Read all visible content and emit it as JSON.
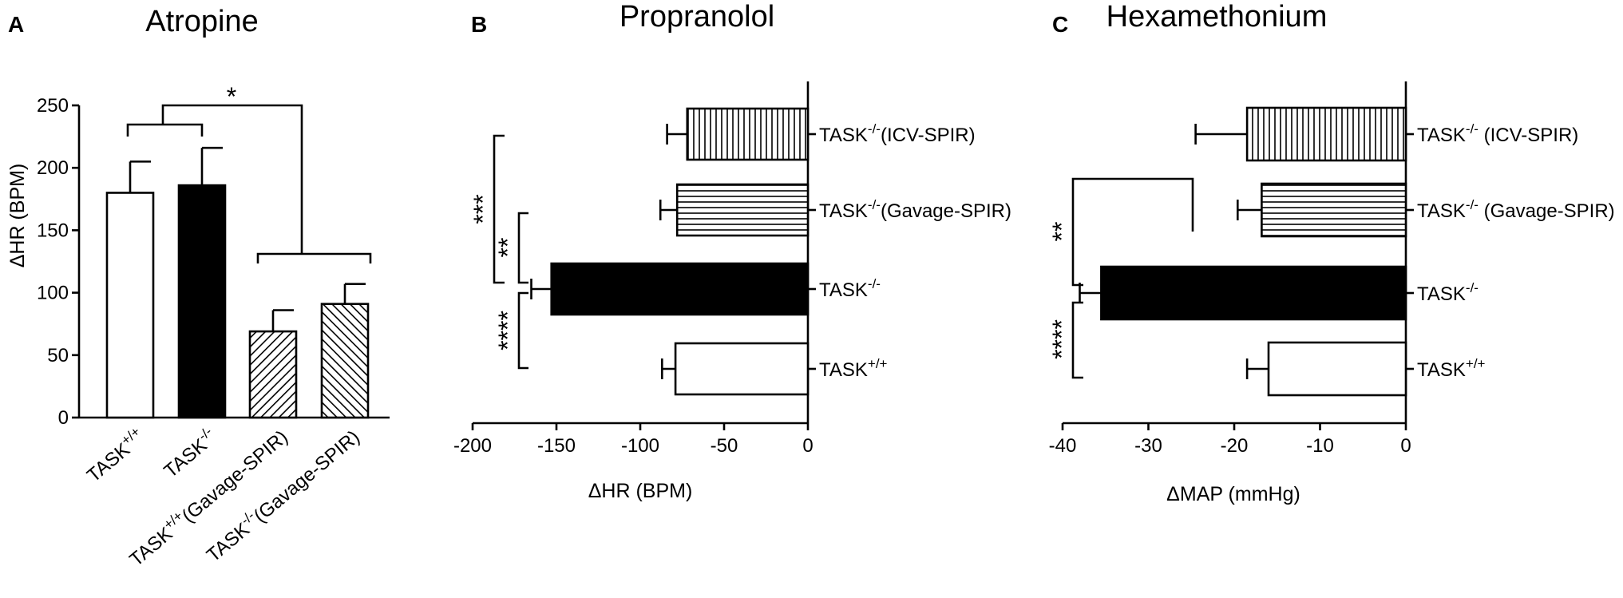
{
  "chart_data": [
    {
      "panel": "A",
      "title": "Atropine",
      "type": "bar",
      "orientation": "vertical",
      "ylabel": "ΔHR (BPM)",
      "xlabel": "",
      "ylim": [
        0,
        250
      ],
      "yticks": [
        0,
        50,
        100,
        150,
        200,
        250
      ],
      "categories": [
        {
          "base": "TASK",
          "sup": "+/+",
          "suffix": ""
        },
        {
          "base": "TASK",
          "sup": "-/-",
          "suffix": ""
        },
        {
          "base": "TASK",
          "sup": "+/+",
          "suffix": "(Gavage-SPIR)"
        },
        {
          "base": "TASK",
          "sup": "-/-",
          "suffix": "(Gavage-SPIR)"
        }
      ],
      "values": [
        180,
        186,
        69,
        91
      ],
      "errors": [
        25,
        30,
        17,
        16
      ],
      "fills": [
        "white",
        "black",
        "diag-up",
        "diag-down"
      ],
      "significance": [
        {
          "groups": [
            [
              0,
              1
            ],
            [
              2,
              3
            ]
          ],
          "label": "*"
        }
      ]
    },
    {
      "panel": "B",
      "title": "Propranolol",
      "type": "bar",
      "orientation": "horizontal",
      "xlabel": "ΔHR (BPM)",
      "xlim": [
        -200,
        0
      ],
      "xticks": [
        -200,
        -150,
        -100,
        -50,
        0
      ],
      "categories": [
        {
          "base": "TASK",
          "sup": "-/-",
          "suffix": "(ICV-SPIR)"
        },
        {
          "base": "TASK",
          "sup": "-/-",
          "suffix": "(Gavage-SPIR)"
        },
        {
          "base": "TASK",
          "sup": "-/-",
          "suffix": ""
        },
        {
          "base": "TASK",
          "sup": "+/+",
          "suffix": ""
        }
      ],
      "values": [
        -72,
        -78,
        -153,
        -79
      ],
      "errors": [
        12,
        10,
        12,
        8
      ],
      "fills": [
        "vertical-lines",
        "horizontal-lines",
        "black",
        "white"
      ],
      "significance": [
        {
          "pair": [
            0,
            2
          ],
          "label": "***"
        },
        {
          "pair": [
            1,
            2
          ],
          "label": "**"
        },
        {
          "pair": [
            2,
            3
          ],
          "label": "****"
        }
      ]
    },
    {
      "panel": "C",
      "title": "Hexamethonium",
      "type": "bar",
      "orientation": "horizontal",
      "xlabel": "ΔMAP (mmHg)",
      "xlim": [
        -40,
        0
      ],
      "xticks": [
        -40,
        -30,
        -20,
        -10,
        0
      ],
      "categories": [
        {
          "base": "TASK",
          "sup": "-/-",
          "suffix": " (ICV-SPIR)"
        },
        {
          "base": "TASK",
          "sup": "-/-",
          "suffix": " (Gavage-SPIR)"
        },
        {
          "base": "TASK",
          "sup": "-/-",
          "suffix": ""
        },
        {
          "base": "TASK",
          "sup": "+/+",
          "suffix": ""
        }
      ],
      "values": [
        -18.5,
        -16.8,
        -35.5,
        -16
      ],
      "errors": [
        6,
        2.8,
        2.5,
        2.5
      ],
      "fills": [
        "vertical-lines",
        "horizontal-lines",
        "black",
        "white"
      ],
      "significance": [
        {
          "pair": [
            [
              0,
              1
            ],
            2
          ],
          "label": "**"
        },
        {
          "pair": [
            2,
            3
          ],
          "label": "****"
        }
      ]
    }
  ]
}
